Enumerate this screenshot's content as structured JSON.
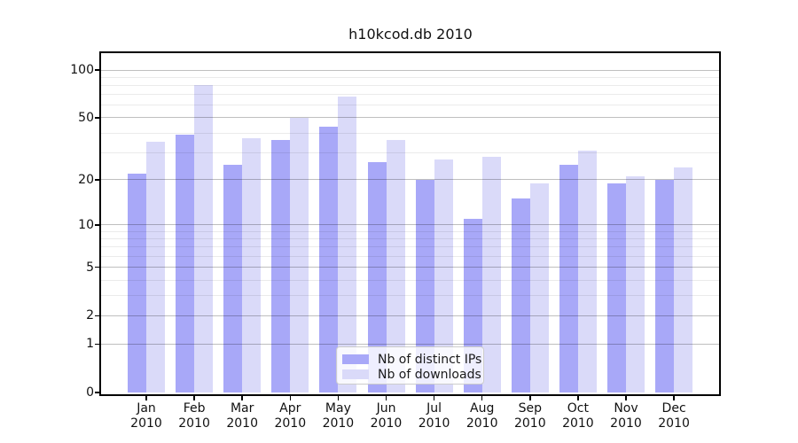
{
  "title": "h10kcod.db 2010",
  "chart_data": {
    "type": "bar",
    "title": "h10kcod.db 2010",
    "categories": [
      "Jan",
      "Feb",
      "Mar",
      "Apr",
      "May",
      "Jun",
      "Jul",
      "Aug",
      "Sep",
      "Oct",
      "Nov",
      "Dec"
    ],
    "x_year_label": "2010",
    "series": [
      {
        "name": "Nb of distinct IPs",
        "color": "#a8a8f8",
        "values": [
          22,
          39,
          25,
          36,
          44,
          26,
          20,
          11,
          15,
          25,
          19,
          20
        ]
      },
      {
        "name": "Nb of downloads",
        "color": "#dadaf9",
        "values": [
          35,
          80,
          37,
          50,
          68,
          36,
          27,
          28,
          19,
          31,
          21,
          24
        ]
      }
    ],
    "y_axis": {
      "scale": "log10(value+1)",
      "tick_labels": [
        "0",
        "1",
        "2",
        "5",
        "10",
        "20",
        "50",
        "100"
      ],
      "ticks": [
        0,
        1,
        2,
        5,
        10,
        20,
        50,
        100
      ],
      "minor_gridlines": [
        3,
        4,
        6,
        7,
        8,
        9,
        30,
        40,
        60,
        70,
        80,
        90
      ],
      "max": 128
    },
    "grid": true,
    "legend_position": "lower center"
  },
  "colors": {
    "ips_bar": "#a8a8f8",
    "downloads_bar": "#dadaf9",
    "spine": "#000000",
    "major_grid": "#c2c2c2",
    "minor_grid": "#ebebeb",
    "text": "#111111"
  }
}
